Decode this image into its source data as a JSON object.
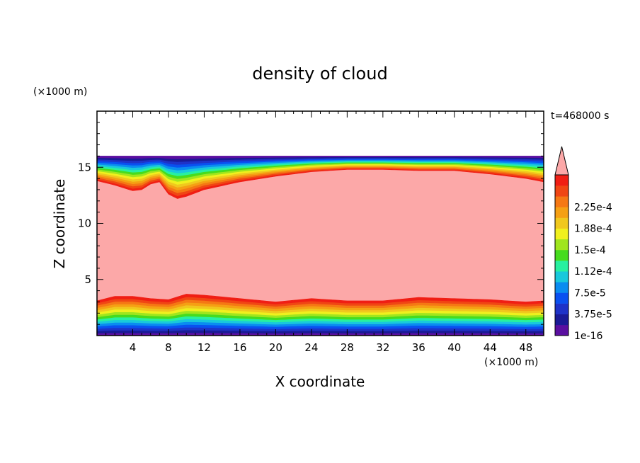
{
  "chart_data": {
    "type": "heatmap",
    "title": "density of cloud",
    "xlabel": "X coordinate",
    "ylabel": "Z coordinate",
    "x_unit_label": "(×1000 m)",
    "y_unit_label": "(×1000 m)",
    "time_label": "t=468000 s",
    "xlim": [
      0,
      50
    ],
    "ylim": [
      0,
      20
    ],
    "x_ticks": [
      4,
      8,
      12,
      16,
      20,
      24,
      28,
      32,
      36,
      40,
      44,
      48
    ],
    "x_tick_labels": [
      "4",
      "8",
      "12",
      "16",
      "20",
      "24",
      "28",
      "32",
      "36",
      "40",
      "44",
      "48"
    ],
    "y_ticks": [
      5,
      10,
      15
    ],
    "y_tick_labels": [
      "5",
      "10",
      "15"
    ],
    "cloud_top_z": 16,
    "upper_cloud_boundary": {
      "x": [
        0,
        2,
        4,
        5,
        6,
        7,
        8,
        9,
        10,
        12,
        16,
        20,
        24,
        28,
        32,
        36,
        40,
        44,
        48,
        50
      ],
      "z": [
        13.8,
        13.4,
        12.9,
        13.0,
        13.5,
        13.7,
        12.6,
        12.2,
        12.4,
        13.0,
        13.7,
        14.2,
        14.6,
        14.8,
        14.8,
        14.7,
        14.7,
        14.4,
        14.0,
        13.7
      ]
    },
    "lower_cloud_boundary": {
      "x": [
        0,
        2,
        4,
        6,
        8,
        10,
        12,
        16,
        20,
        24,
        28,
        32,
        36,
        40,
        44,
        48,
        50
      ],
      "z": [
        3.1,
        3.5,
        3.5,
        3.3,
        3.2,
        3.7,
        3.6,
        3.3,
        3.0,
        3.3,
        3.1,
        3.1,
        3.4,
        3.3,
        3.2,
        3.0,
        3.1
      ]
    },
    "colorbar": {
      "levels": [
        1e-16,
        3.75e-05,
        7.5e-05,
        0.000112,
        0.00015,
        0.000188,
        0.000225
      ],
      "labels": [
        "1e-16",
        "3.75e-5",
        "7.5e-5",
        "1.12e-4",
        "1.5e-4",
        "1.88e-4",
        "2.25e-4"
      ],
      "colors": [
        "#5a0fa0",
        "#1a1a96",
        "#1e32c8",
        "#0a50f0",
        "#0a8cf0",
        "#19c8dc",
        "#28f0a0",
        "#46dc1e",
        "#a0e61e",
        "#f0f01e",
        "#f0c81e",
        "#f5a014",
        "#f57814",
        "#f04614",
        "#f01e14"
      ],
      "overflow_color": "#fca8a8"
    }
  }
}
